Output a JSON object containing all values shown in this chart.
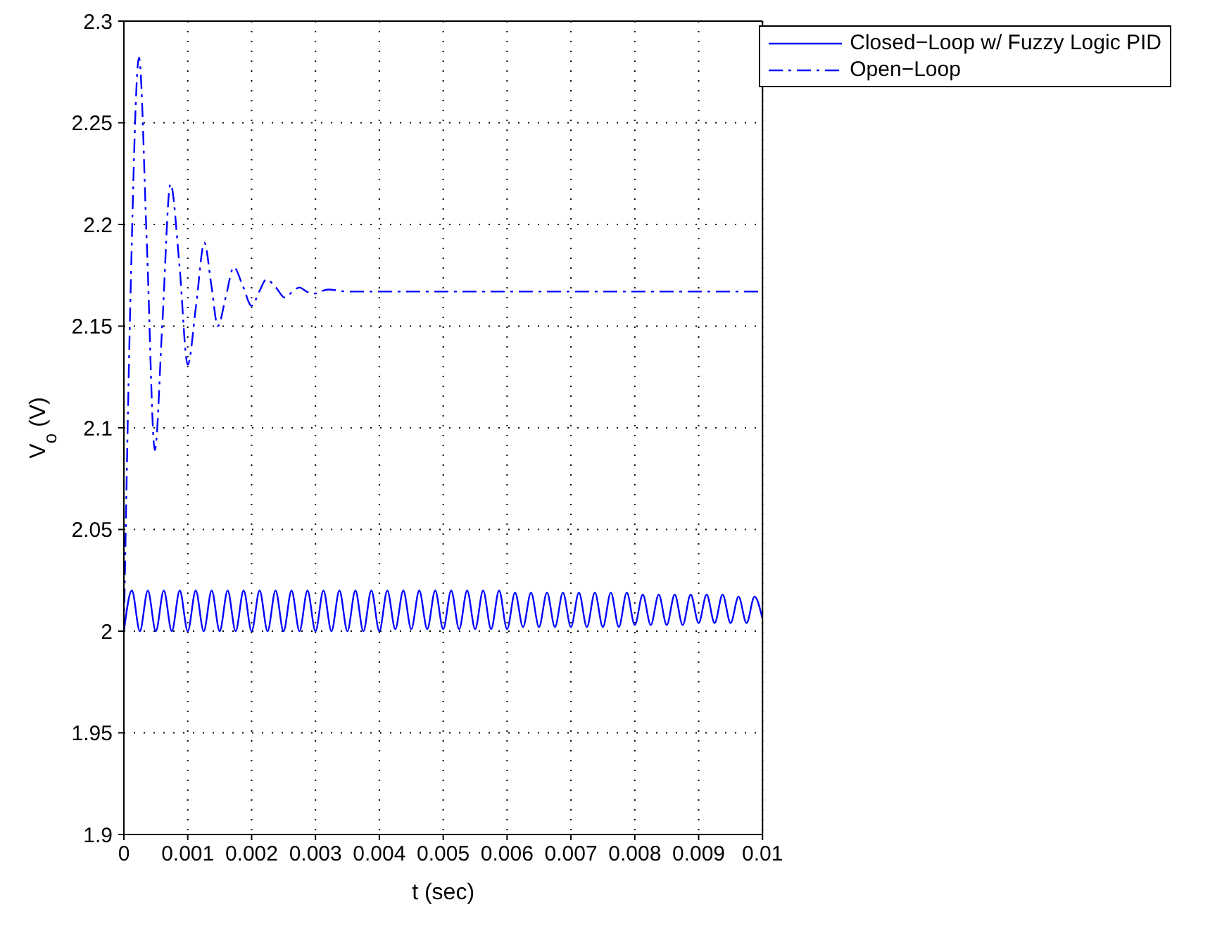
{
  "chart_data": {
    "type": "line",
    "xlabel": "t (sec)",
    "ylabel": "V$_{o}$ (V)",
    "xlim": [
      0,
      0.01
    ],
    "ylim": [
      1.9,
      2.3
    ],
    "xticks": [
      0,
      0.001,
      0.002,
      0.003,
      0.004,
      0.005,
      0.006,
      0.007,
      0.008,
      0.009,
      0.01
    ],
    "yticks": [
      1.9,
      1.95,
      2,
      2.05,
      2.1,
      2.15,
      2.2,
      2.25,
      2.3
    ],
    "grid": true,
    "legend": "top right",
    "series": [
      {
        "name": "Closed−Loop w/ Fuzzy Logic PID",
        "color": "#0000ff",
        "line_style": "solid",
        "x": [
          0,
          0.000125,
          0.00025,
          0.000375,
          0.0005,
          0.000625,
          0.00075,
          0.000875,
          0.001,
          0.001125,
          0.00125,
          0.001375,
          0.0015,
          0.001625,
          0.00175,
          0.001875,
          0.002,
          0.002125,
          0.00225,
          0.002375,
          0.0025,
          0.002625,
          0.00275,
          0.002875,
          0.003,
          0.003125,
          0.00325,
          0.003375,
          0.0035,
          0.003625,
          0.00375,
          0.003875,
          0.004,
          0.004125,
          0.00425,
          0.004375,
          0.0045,
          0.004625,
          0.00475,
          0.004875,
          0.005,
          0.005125,
          0.00525,
          0.005375,
          0.0055,
          0.005625,
          0.00575,
          0.005875,
          0.006,
          0.006125,
          0.00625,
          0.006375,
          0.0065,
          0.006625,
          0.00675,
          0.006875,
          0.007,
          0.007125,
          0.00725,
          0.007375,
          0.0075,
          0.007625,
          0.00775,
          0.007875,
          0.008,
          0.008125,
          0.00825,
          0.008375,
          0.0085,
          0.008625,
          0.00875,
          0.008875,
          0.009,
          0.009125,
          0.00925,
          0.009375,
          0.0095,
          0.009625,
          0.00975,
          0.009875,
          0.01
        ],
        "values": [
          2,
          2.02,
          2,
          2.02,
          2,
          2.02,
          2,
          2.02,
          2,
          2.02,
          2,
          2.02,
          2,
          2.02,
          2,
          2.02,
          2,
          2.02,
          2,
          2.02,
          2,
          2.02,
          2,
          2.02,
          2,
          2.02,
          2,
          2.02,
          2,
          2.02,
          2,
          2.02,
          2,
          2.02,
          2.001,
          2.02,
          2.001,
          2.02,
          2.001,
          2.02,
          2.001,
          2.02,
          2.001,
          2.02,
          2.001,
          2.02,
          2.001,
          2.02,
          2.001,
          2.019,
          2.002,
          2.019,
          2.002,
          2.019,
          2.002,
          2.019,
          2.002,
          2.019,
          2.002,
          2.019,
          2.002,
          2.019,
          2.002,
          2.019,
          2.003,
          2.018,
          2.003,
          2.018,
          2.003,
          2.018,
          2.003,
          2.018,
          2.004,
          2.018,
          2.004,
          2.018,
          2.004,
          2.017,
          2.004,
          2.017,
          2.006
        ]
      },
      {
        "name": "Open−Loop",
        "color": "#0000ff",
        "line_style": "dashed",
        "x": [
          0,
          0.0001,
          0.000237,
          0.00036,
          0.000485,
          0.0006,
          0.00073,
          0.00087,
          0.001,
          0.00113,
          0.00126,
          0.00137,
          0.00147,
          0.0016,
          0.00172,
          0.00186,
          0.002,
          0.00212,
          0.00223,
          0.00238,
          0.00252,
          0.00264,
          0.00275,
          0.00286,
          0.00297,
          0.0032,
          0.0035,
          0.004,
          0.005,
          0.006,
          0.007,
          0.008,
          0.009,
          0.01
        ],
        "values": [
          2,
          2.16,
          2.282,
          2.19,
          2.089,
          2.15,
          2.22,
          2.18,
          2.131,
          2.16,
          2.191,
          2.17,
          2.15,
          2.165,
          2.179,
          2.17,
          2.16,
          2.167,
          2.173,
          2.169,
          2.164,
          2.167,
          2.169,
          2.167,
          2.166,
          2.168,
          2.167,
          2.167,
          2.167,
          2.167,
          2.167,
          2.167,
          2.167,
          2.167
        ]
      }
    ]
  }
}
